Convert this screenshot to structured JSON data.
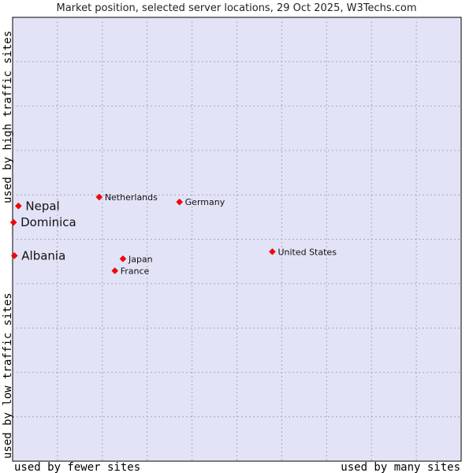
{
  "chart_data": {
    "type": "scatter",
    "title": "Market position, selected server locations, 29 Oct 2025, W3Techs.com",
    "xlabel_low": "used by fewer sites",
    "xlabel_high": "used by many sites",
    "ylabel_low": "used by low traffic sites",
    "ylabel_high": "used by high traffic sites",
    "xlim": [
      0,
      10
    ],
    "ylim": [
      0,
      10
    ],
    "grid": true,
    "marker_color": "#ff0000",
    "plot_background": "#e3e3f8",
    "points": [
      {
        "label": "Nepal",
        "x": 0.13,
        "y": 5.75,
        "emphasis": true
      },
      {
        "label": "Dominica",
        "x": 0.02,
        "y": 5.38,
        "emphasis": true
      },
      {
        "label": "Albania",
        "x": 0.04,
        "y": 4.63,
        "emphasis": true
      },
      {
        "label": "Netherlands",
        "x": 1.93,
        "y": 5.95,
        "emphasis": false
      },
      {
        "label": "Germany",
        "x": 3.72,
        "y": 5.84,
        "emphasis": false
      },
      {
        "label": "United States",
        "x": 5.79,
        "y": 4.72,
        "emphasis": false
      },
      {
        "label": "Japan",
        "x": 2.46,
        "y": 4.56,
        "emphasis": false
      },
      {
        "label": "France",
        "x": 2.28,
        "y": 4.29,
        "emphasis": false
      }
    ]
  }
}
